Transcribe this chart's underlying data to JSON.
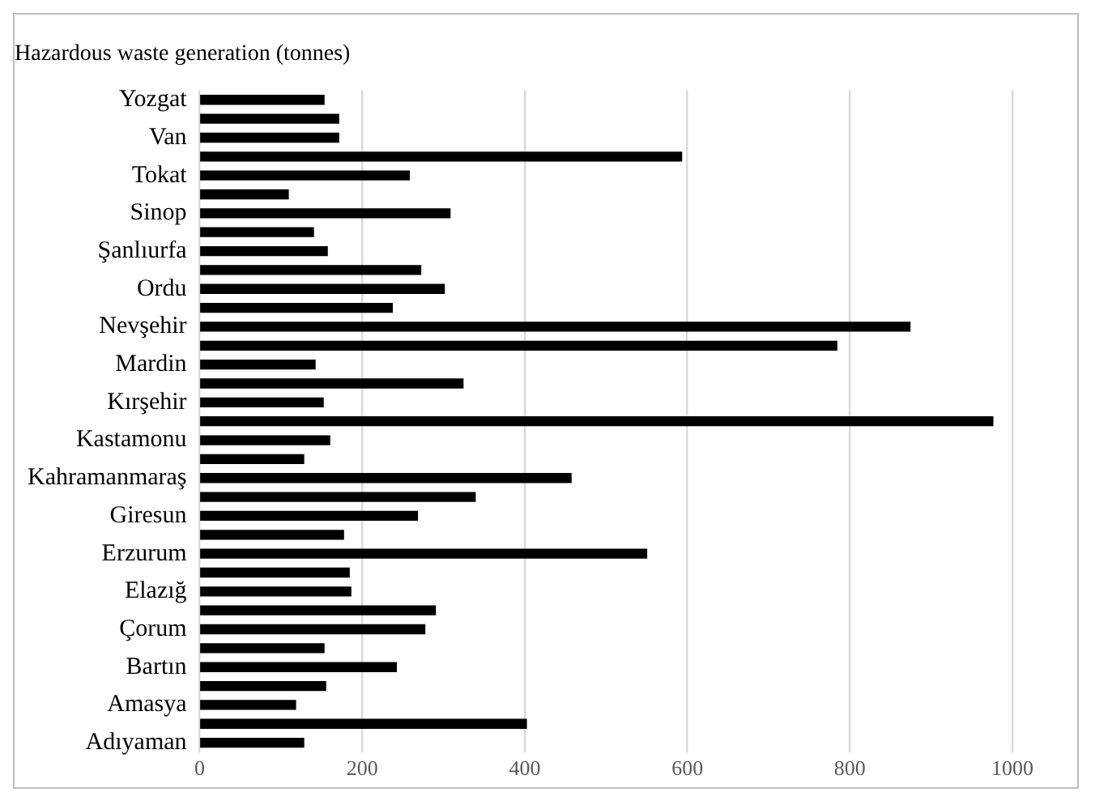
{
  "chart_data": {
    "type": "bar",
    "orientation": "horizontal",
    "title": "Hazardous waste generation (tonnes)",
    "categories": [
      "Yozgat",
      null,
      "Van",
      null,
      "Tokat",
      null,
      "Sinop",
      null,
      "Şanlıurfa",
      null,
      "Ordu",
      null,
      "Nevşehir",
      null,
      "Mardin",
      null,
      "Kırşehir",
      null,
      "Kastamonu",
      null,
      "Kahramanmaraş",
      null,
      "Giresun",
      null,
      "Erzurum",
      null,
      "Elazığ",
      null,
      "Çorum",
      null,
      "Bartın",
      null,
      "Amasya",
      null,
      "Adıyaman"
    ],
    "values": [
      153,
      171,
      171,
      593,
      258,
      109,
      308,
      140,
      157,
      272,
      301,
      237,
      874,
      784,
      142,
      324,
      152,
      976,
      160,
      128,
      457,
      339,
      268,
      177,
      550,
      184,
      186,
      290,
      277,
      153,
      242,
      155,
      118,
      402,
      128
    ],
    "color": "#000000",
    "xlim": [
      0,
      1000
    ],
    "xticks": [
      0,
      200,
      400,
      600,
      800,
      1000
    ],
    "grid": "x",
    "legend": false
  }
}
